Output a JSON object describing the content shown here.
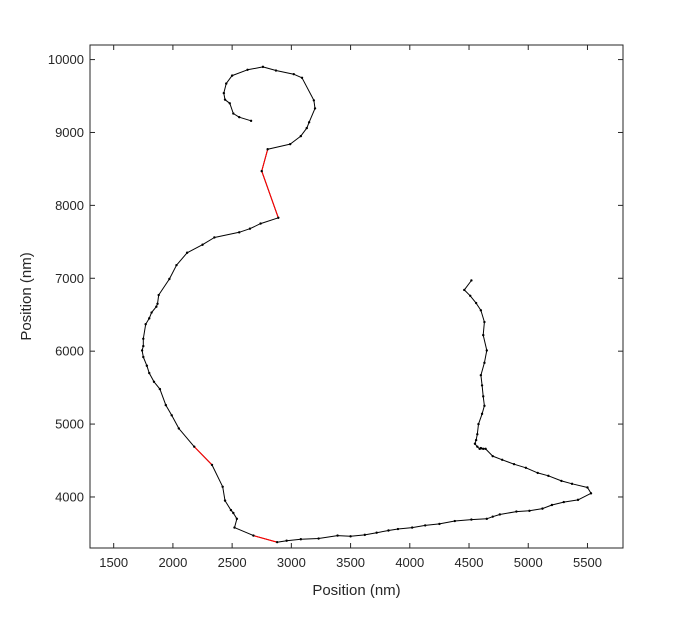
{
  "chart_data": {
    "type": "line",
    "title": "",
    "xlabel": "Position (nm)",
    "ylabel": "Position (nm)",
    "xlim": [
      1300,
      5800
    ],
    "ylim": [
      3300,
      10200
    ],
    "xticks": [
      1500,
      2000,
      2500,
      3000,
      3500,
      4000,
      4500,
      5000,
      5500
    ],
    "yticks": [
      4000,
      5000,
      6000,
      7000,
      8000,
      9000,
      10000
    ],
    "grid": false,
    "legend": "none",
    "colors": {
      "trajectory": "#000000",
      "highlight": "#ff0000",
      "axes": "#262626"
    },
    "x": [
      4520,
      4460,
      4510,
      4560,
      4600,
      4630,
      4620,
      4650,
      4630,
      4600,
      4610,
      4620,
      4630,
      4610,
      4580,
      4570,
      4560,
      4550,
      4570,
      4590,
      4620,
      4600,
      4640,
      4700,
      4780,
      4880,
      4980,
      5080,
      5170,
      5280,
      5370,
      5500,
      5530,
      5420,
      5300,
      5200,
      5120,
      5010,
      4900,
      4760,
      4700,
      4650,
      4520,
      4380,
      4250,
      4130,
      4020,
      3900,
      3820,
      3720,
      3620,
      3500,
      3390,
      3230,
      3080,
      2960,
      2880,
      2680,
      2520,
      2540,
      2510,
      2490,
      2440,
      2420,
      2330,
      2180,
      2050,
      1990,
      1940,
      1890,
      1840,
      1800,
      1780,
      1750,
      1740,
      1750,
      1750,
      1770,
      1800,
      1820,
      1860,
      1870,
      1880,
      1970,
      2030,
      2120,
      2250,
      2350,
      2560,
      2650,
      2740,
      2890,
      2750,
      2800,
      2990,
      3080,
      3130,
      3150,
      3200,
      3190,
      3090,
      3020,
      2870,
      2760,
      2630,
      2500,
      2450,
      2430,
      2440,
      2480,
      2510,
      2560,
      2660
    ],
    "y": [
      6970,
      6840,
      6760,
      6660,
      6560,
      6400,
      6220,
      6010,
      5840,
      5670,
      5530,
      5380,
      5250,
      5140,
      5000,
      4860,
      4780,
      4730,
      4690,
      4660,
      4660,
      4670,
      4660,
      4560,
      4510,
      4450,
      4400,
      4330,
      4290,
      4220,
      4180,
      4130,
      4050,
      3960,
      3930,
      3890,
      3840,
      3810,
      3800,
      3760,
      3730,
      3700,
      3690,
      3670,
      3630,
      3610,
      3580,
      3560,
      3540,
      3510,
      3480,
      3460,
      3470,
      3430,
      3420,
      3400,
      3380,
      3470,
      3580,
      3700,
      3780,
      3820,
      3950,
      4140,
      4440,
      4690,
      4940,
      5120,
      5260,
      5480,
      5580,
      5700,
      5800,
      5920,
      6010,
      6070,
      6170,
      6370,
      6450,
      6530,
      6610,
      6650,
      6770,
      6990,
      7180,
      7350,
      7460,
      7560,
      7630,
      7680,
      7750,
      7830,
      8470,
      8770,
      8840,
      8950,
      9060,
      9140,
      9330,
      9440,
      9750,
      9800,
      9850,
      9900,
      9860,
      9780,
      9670,
      9540,
      9450,
      9400,
      9260,
      9210,
      9160
    ],
    "highlight_segments": [
      {
        "x": [
          2180,
          2330
        ],
        "y": [
          4690,
          4440
        ]
      },
      {
        "x": [
          2680,
          2880
        ],
        "y": [
          3470,
          3380
        ]
      },
      {
        "x": [
          2890,
          2750
        ],
        "y": [
          7830,
          8470
        ]
      },
      {
        "x": [
          2750,
          2800
        ],
        "y": [
          8470,
          8770
        ]
      }
    ]
  }
}
